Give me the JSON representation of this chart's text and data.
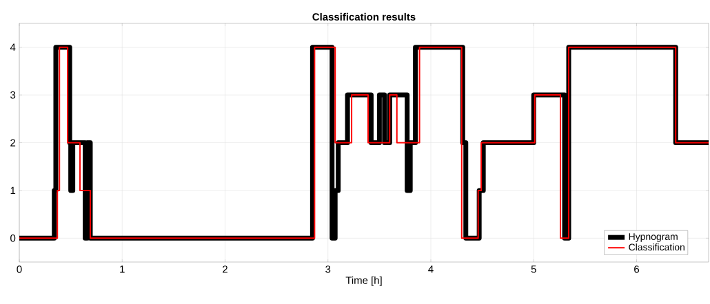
{
  "chart_data": {
    "type": "step",
    "title": "Classification results",
    "xlabel": "Time [h]",
    "xlim": [
      0,
      6.7
    ],
    "ylim": [
      -0.5,
      4.5
    ],
    "xticks": [
      0,
      1,
      2,
      3,
      4,
      5,
      6
    ],
    "yticks": [
      0,
      1,
      2,
      3,
      4
    ],
    "grid": true,
    "legend": "bottom right",
    "marker": "none",
    "line_style": "solid",
    "series": [
      {
        "name": "Hypnogram",
        "color": "#000000",
        "x": [
          0,
          0.34,
          0.355,
          0.49,
          0.5,
          0.52,
          0.64,
          0.66,
          0.69,
          2.85,
          3.04,
          3.07,
          3.1,
          3.19,
          3.42,
          3.5,
          3.55,
          3.6,
          3.77,
          3.8,
          3.85,
          4.31,
          4.34,
          4.47,
          4.51,
          5.0,
          5.3,
          5.34,
          6.38,
          6.7
        ],
        "values": [
          0,
          1,
          4,
          2,
          1,
          2,
          0,
          2,
          0,
          4,
          0,
          1,
          2,
          3,
          2,
          3,
          2,
          3,
          1,
          2,
          4,
          2,
          0,
          1,
          2,
          3,
          0,
          4,
          2,
          2
        ]
      },
      {
        "name": "Classification",
        "color": "#ff0000",
        "x": [
          0,
          0.37,
          0.39,
          0.47,
          0.59,
          0.69,
          2.87,
          3.07,
          3.23,
          3.39,
          3.6,
          3.67,
          3.89,
          4.3,
          4.46,
          4.49,
          5.01,
          5.26,
          5.34,
          6.38,
          6.7
        ],
        "values": [
          0,
          1,
          4,
          2,
          1,
          0,
          4,
          2,
          3,
          2,
          3,
          2,
          4,
          0,
          1,
          2,
          3,
          0,
          4,
          2,
          2
        ]
      }
    ]
  }
}
